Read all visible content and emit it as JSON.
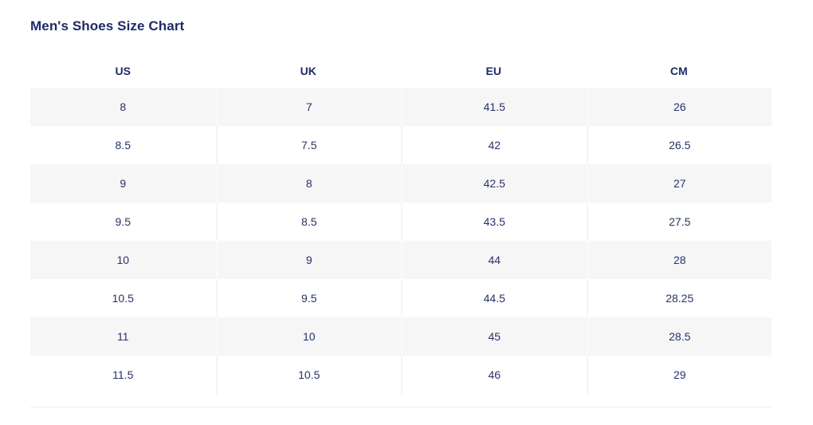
{
  "title": "Men's Shoes Size Chart",
  "table": {
    "columns": [
      "US",
      "UK",
      "EU",
      "CM"
    ],
    "rows": [
      [
        "8",
        "7",
        "41.5",
        "26"
      ],
      [
        "8.5",
        "7.5",
        "42",
        "26.5"
      ],
      [
        "9",
        "8",
        "42.5",
        "27"
      ],
      [
        "9.5",
        "8.5",
        "43.5",
        "27.5"
      ],
      [
        "10",
        "9",
        "44",
        "28"
      ],
      [
        "10.5",
        "9.5",
        "44.5",
        "28.25"
      ],
      [
        "11",
        "10",
        "45",
        "28.5"
      ],
      [
        "11.5",
        "10.5",
        "46",
        "29"
      ]
    ]
  },
  "colors": {
    "text_navy": "#1e2b66",
    "cell_text": "#27326a",
    "row_alt_bg": "#f6f6f7",
    "divider": "#f0f0f0",
    "background": "#ffffff"
  },
  "chart_data": {
    "type": "table",
    "title": "Men's Shoes Size Chart",
    "columns": [
      "US",
      "UK",
      "EU",
      "CM"
    ],
    "rows": [
      [
        8,
        7,
        41.5,
        26
      ],
      [
        8.5,
        7.5,
        42,
        26.5
      ],
      [
        9,
        8,
        42.5,
        27
      ],
      [
        9.5,
        8.5,
        43.5,
        27.5
      ],
      [
        10,
        9,
        44,
        28
      ],
      [
        10.5,
        9.5,
        44.5,
        28.25
      ],
      [
        11,
        10,
        45,
        28.5
      ],
      [
        11.5,
        10.5,
        46,
        29
      ]
    ],
    "layout_hints": {
      "striped_rows": true,
      "first_row_shaded": true,
      "column_alignment": "center",
      "grid": "none"
    }
  }
}
